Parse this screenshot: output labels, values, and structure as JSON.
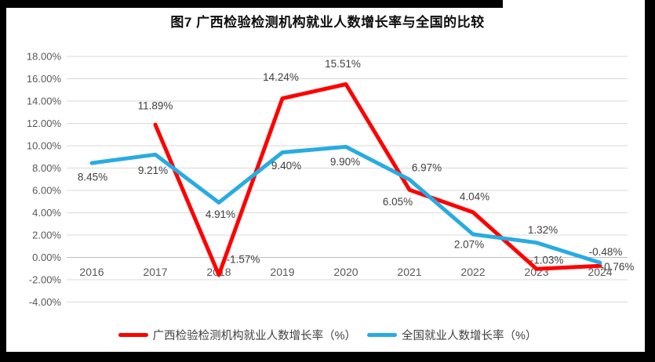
{
  "frame": {
    "color": "#000000"
  },
  "chart_data": {
    "type": "line",
    "title": "图7 广西检验检测机构就业人数增长率与全国的比较",
    "categories": [
      "2016",
      "2017",
      "2018",
      "2019",
      "2020",
      "2021",
      "2022",
      "2023",
      "2024"
    ],
    "series": [
      {
        "name": "广西检验检测机构就业人数增长率（%）",
        "color": "#FF0000",
        "values": [
          null,
          11.89,
          -1.57,
          14.24,
          15.51,
          6.05,
          4.04,
          -1.03,
          -0.76
        ]
      },
      {
        "name": "全国就业人数增长率（%）",
        "color": "#29ABE2",
        "values": [
          8.45,
          9.21,
          4.91,
          9.4,
          9.9,
          6.97,
          2.07,
          1.32,
          -0.48
        ]
      }
    ],
    "y_ticks": [
      "18.00%",
      "16.00%",
      "14.00%",
      "12.00%",
      "10.00%",
      "8.00%",
      "6.00%",
      "4.00%",
      "2.00%",
      "0.00%",
      "-2.00%",
      "-4.00%"
    ],
    "ylim": [
      -4,
      18
    ],
    "y_tick_step": 2,
    "grid": true,
    "data_labels": true,
    "legend_position": "bottom",
    "colors": {
      "gridline": "#D9D9D9",
      "axis_line": "#BFBFBF",
      "tick_text": "#595959",
      "label_text": "#3F3F3F"
    }
  }
}
